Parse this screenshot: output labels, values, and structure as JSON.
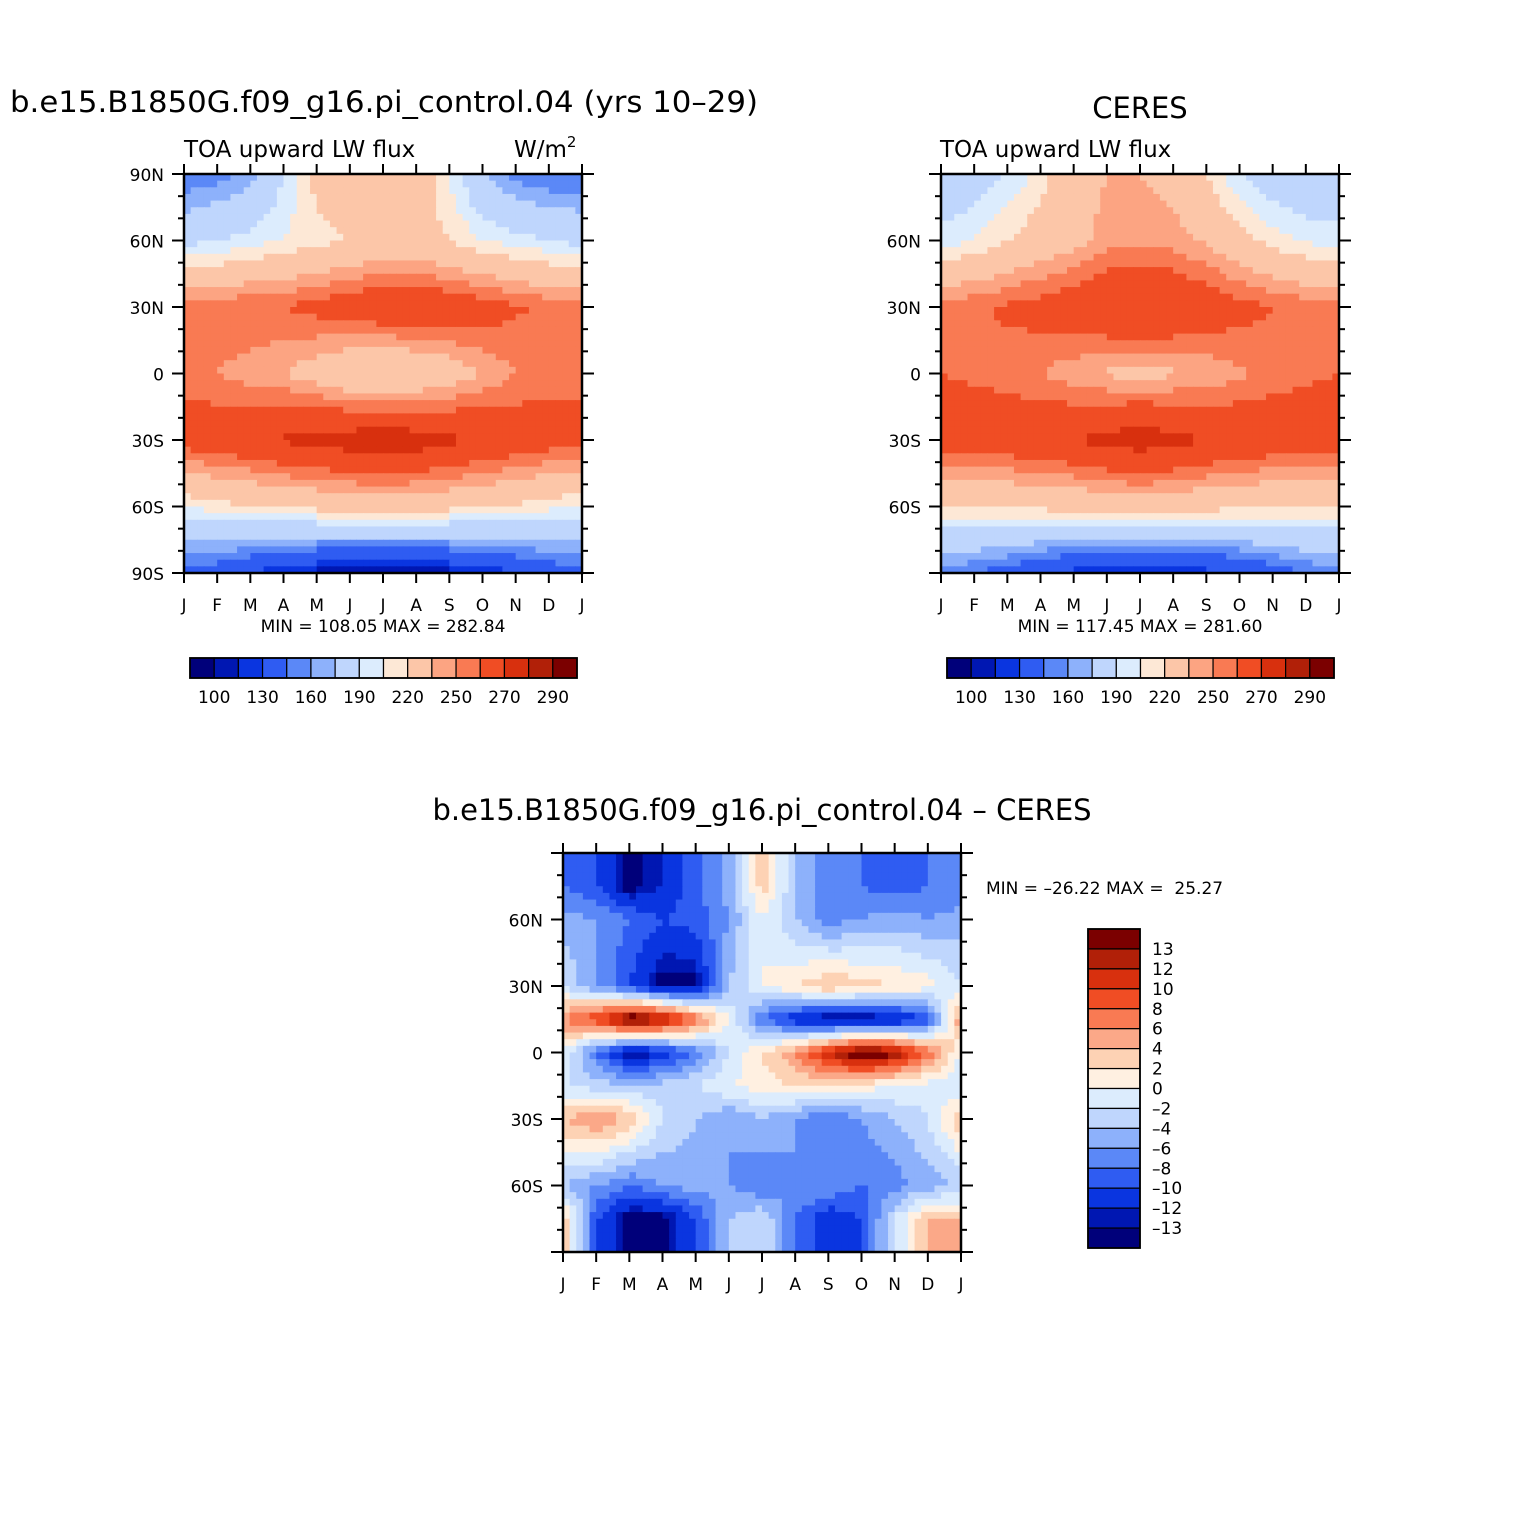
{
  "colors": {
    "abs_palette": [
      "#00007a",
      "#0017b2",
      "#0a35e0",
      "#2f5cf2",
      "#5b88f7",
      "#8db1fb",
      "#bfd6fd",
      "#dcecfd",
      "#fde8d6",
      "#fcc6a8",
      "#fca482",
      "#f97a53",
      "#f04d24",
      "#d8300e",
      "#b12008",
      "#7b0000"
    ],
    "diff_palette": [
      "#00007a",
      "#0017b2",
      "#0a35e0",
      "#2f5cf2",
      "#5b88f7",
      "#8db1fb",
      "#bfd6fd",
      "#dcecfd",
      "#fff0e1",
      "#fdd2b4",
      "#fba888",
      "#f97a53",
      "#f04d24",
      "#d8300e",
      "#b12008",
      "#7b0000"
    ]
  },
  "panels": [
    {
      "id": "model",
      "title": "b.e15.B1850G.f09_g16.pi_control.04 (yrs 10–29)",
      "left_label": "TOA upward LW flux",
      "right_label": "W/m",
      "right_label_sup": "2",
      "ytick_labels": [
        "90N",
        "60N",
        "30N",
        "0",
        "30S",
        "60S",
        "90S"
      ],
      "xtick_labels": [
        "J",
        "F",
        "M",
        "A",
        "M",
        "J",
        "J",
        "A",
        "S",
        "O",
        "N",
        "D",
        "J"
      ],
      "stats": "MIN = 108.05 MAX = 282.84",
      "colorbar_labels": [
        "100",
        "130",
        "160",
        "190",
        "220",
        "250",
        "270",
        "290"
      ]
    },
    {
      "id": "obs",
      "title": "CERES",
      "left_label": "TOA upward LW flux",
      "right_label": "",
      "right_label_sup": "",
      "ytick_labels": [
        "60N",
        "30N",
        "0",
        "30S",
        "60S"
      ],
      "xtick_labels": [
        "J",
        "F",
        "M",
        "A",
        "M",
        "J",
        "J",
        "A",
        "S",
        "O",
        "N",
        "D",
        "J"
      ],
      "stats": "MIN = 117.45 MAX = 281.60",
      "colorbar_labels": [
        "100",
        "130",
        "160",
        "190",
        "220",
        "250",
        "270",
        "290"
      ]
    },
    {
      "id": "diff",
      "title": "b.e15.B1850G.f09_g16.pi_control.04 – CERES",
      "ytick_labels": [
        "60N",
        "30N",
        "0",
        "30S",
        "60S"
      ],
      "xtick_labels": [
        "J",
        "F",
        "M",
        "A",
        "M",
        "J",
        "J",
        "A",
        "S",
        "O",
        "N",
        "D",
        "J"
      ],
      "stats": "MIN = –26.22 MAX =  25.27",
      "colorbar_labels": [
        "13",
        "12",
        "10",
        "8",
        "6",
        "4",
        "2",
        "0",
        "–2",
        "–4",
        "–6",
        "–8",
        "–10",
        "–12",
        "–13"
      ]
    }
  ],
  "chart_data": [
    {
      "type": "heatmap",
      "title": "b.e15.B1850G.f09_g16.pi_control.04 (yrs 10–29)",
      "variable": "TOA upward LW flux",
      "units": "W/m2",
      "x": [
        "J",
        "F",
        "M",
        "A",
        "M",
        "J",
        "J",
        "A",
        "S",
        "O",
        "N",
        "D",
        "J"
      ],
      "y": [
        90,
        60,
        30,
        0,
        -30,
        -60,
        -90
      ],
      "z": [
        [
          150,
          155,
          165,
          190,
          215,
          225,
          225,
          220,
          200,
          170,
          155,
          150,
          150
        ],
        [
          185,
          190,
          195,
          200,
          205,
          210,
          215,
          215,
          210,
          200,
          195,
          190,
          185
        ],
        [
          245,
          245,
          250,
          250,
          255,
          260,
          265,
          265,
          262,
          258,
          252,
          248,
          245
        ],
        [
          245,
          240,
          235,
          230,
          222,
          212,
          208,
          212,
          220,
          230,
          240,
          245,
          245
        ],
        [
          258,
          262,
          265,
          272,
          276,
          280,
          283,
          280,
          274,
          268,
          262,
          258,
          258
        ],
        [
          200,
          205,
          210,
          212,
          215,
          218,
          220,
          218,
          215,
          212,
          208,
          203,
          200
        ],
        [
          145,
          140,
          130,
          120,
          115,
          112,
          110,
          112,
          115,
          120,
          130,
          140,
          145
        ]
      ],
      "colorbar_levels": [
        100,
        110,
        120,
        130,
        140,
        150,
        160,
        170,
        180,
        190,
        200,
        210,
        220,
        230,
        240,
        250,
        260,
        270,
        280,
        290
      ],
      "min": 108.05,
      "max": 282.84
    },
    {
      "type": "heatmap",
      "title": "CERES",
      "variable": "TOA upward LW flux",
      "x": [
        "J",
        "F",
        "M",
        "A",
        "M",
        "J",
        "J",
        "A",
        "S",
        "O",
        "N",
        "D",
        "J"
      ],
      "y": [
        90,
        60,
        30,
        0,
        -30,
        -60,
        -90
      ],
      "z": [
        [
          175,
          180,
          190,
          205,
          220,
          230,
          230,
          225,
          210,
          190,
          180,
          175,
          175
        ],
        [
          195,
          200,
          210,
          218,
          225,
          235,
          238,
          235,
          228,
          215,
          205,
          198,
          195
        ],
        [
          245,
          248,
          252,
          256,
          262,
          268,
          270,
          268,
          262,
          255,
          250,
          246,
          245
        ],
        [
          250,
          248,
          245,
          240,
          233,
          228,
          226,
          228,
          232,
          238,
          244,
          248,
          250
        ],
        [
          258,
          260,
          262,
          265,
          270,
          276,
          280,
          276,
          270,
          265,
          262,
          260,
          258
        ],
        [
          208,
          210,
          212,
          214,
          215,
          218,
          220,
          218,
          215,
          213,
          211,
          209,
          208
        ],
        [
          155,
          150,
          142,
          132,
          125,
          120,
          118,
          120,
          125,
          132,
          142,
          150,
          155
        ]
      ],
      "colorbar_levels": [
        100,
        110,
        120,
        130,
        140,
        150,
        160,
        170,
        180,
        190,
        200,
        210,
        220,
        230,
        240,
        250,
        260,
        270,
        280,
        290
      ],
      "min": 117.45,
      "max": 281.6
    },
    {
      "type": "heatmap",
      "title": "b.e15.B1850G.f09_g16.pi_control.04 – CERES",
      "x": [
        "J",
        "F",
        "M",
        "A",
        "M",
        "J",
        "J",
        "A",
        "S",
        "O",
        "N",
        "D",
        "J"
      ],
      "y": [
        75,
        60,
        30,
        15,
        0,
        -15,
        -30,
        -60,
        -75
      ],
      "z": [
        [
          -8,
          -10,
          -14,
          -12,
          -9,
          -5,
          3,
          -4,
          -7,
          -8,
          -9,
          -8,
          -8
        ],
        [
          -5,
          -6,
          -8,
          -10,
          -9,
          -6,
          0,
          -4,
          -7,
          -6,
          -5,
          -6,
          -5
        ],
        [
          -2,
          -6,
          -10,
          -14,
          -14,
          -4,
          0,
          2,
          4,
          3,
          2,
          1,
          -2
        ],
        [
          6,
          10,
          16,
          14,
          8,
          0,
          -8,
          -12,
          -14,
          -14,
          -13,
          -10,
          6
        ],
        [
          0,
          -8,
          -14,
          -12,
          -8,
          -2,
          2,
          6,
          12,
          16,
          14,
          8,
          0
        ],
        [
          -2,
          -3,
          -4,
          -3,
          -2,
          0,
          1,
          2,
          2,
          1,
          0,
          -1,
          -2
        ],
        [
          4,
          6,
          4,
          -2,
          -4,
          -6,
          -4,
          -6,
          -8,
          -6,
          -4,
          -2,
          4
        ],
        [
          -4,
          -6,
          -8,
          -6,
          -5,
          -6,
          -8,
          -6,
          -6,
          -8,
          -7,
          -5,
          -4
        ],
        [
          4,
          -10,
          -14,
          -14,
          -10,
          -4,
          -2,
          -8,
          -12,
          -10,
          -2,
          4,
          4
        ]
      ],
      "colorbar_levels": [
        -13,
        -12,
        -10,
        -8,
        -6,
        -4,
        -2,
        0,
        2,
        4,
        6,
        8,
        10,
        12,
        13
      ],
      "min": -26.22,
      "max": 25.27
    }
  ]
}
